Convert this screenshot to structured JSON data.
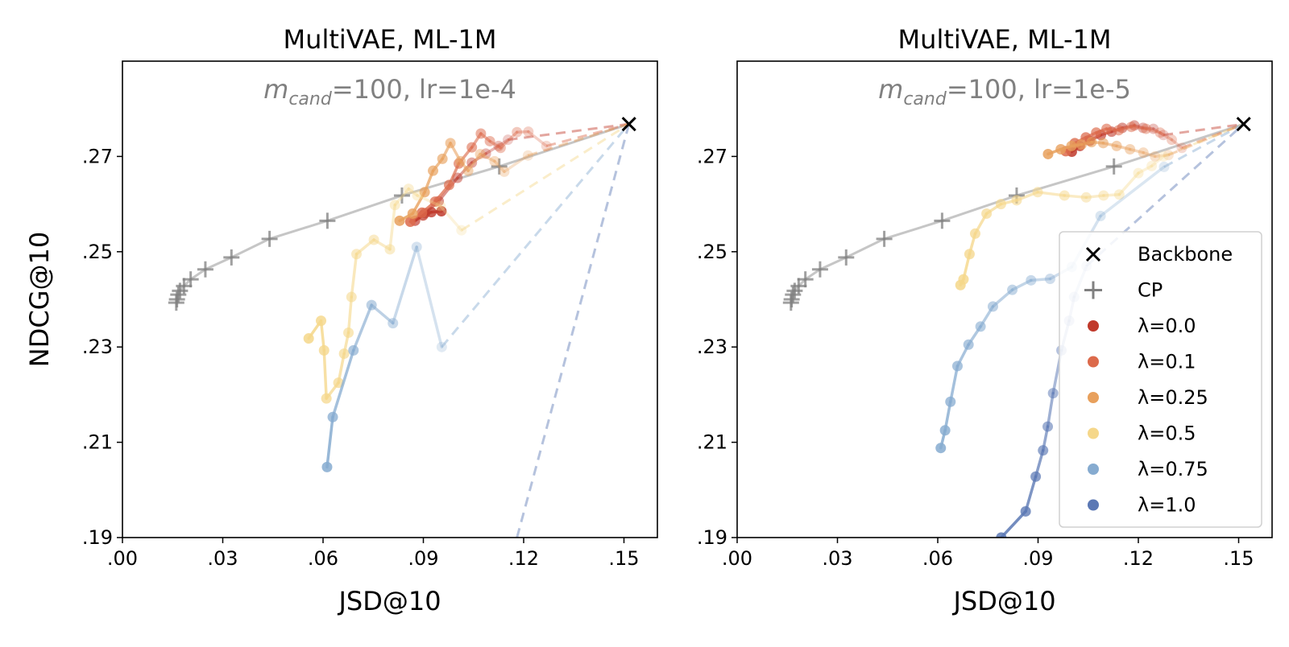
{
  "chart_data": [
    {
      "type": "line",
      "title": "MultiVAE, ML-1M",
      "annotation": {
        "sym": "m",
        "sub": "cand",
        "rest": "=100, lr=1e-4"
      },
      "xlabel": "JSD@10",
      "ylabel": "NDCG@10",
      "xlim": [
        0.0,
        0.16
      ],
      "ylim": [
        0.19,
        0.29
      ],
      "xticks": [
        0.0,
        0.03,
        0.06,
        0.09,
        0.12,
        0.15
      ],
      "xtick_labels": [
        ".00",
        ".03",
        ".06",
        ".09",
        ".12",
        ".15"
      ],
      "yticks": [
        0.19,
        0.21,
        0.23,
        0.25,
        0.27
      ],
      "ytick_labels": [
        ".19",
        ".21",
        ".23",
        ".25",
        ".27"
      ],
      "grid": false,
      "backbone": {
        "name": "Backbone",
        "x": 0.1515,
        "y": 0.2768,
        "color": "#000000"
      },
      "cp": {
        "name": "CP",
        "color": "#808080",
        "x": [
          0.0161,
          0.0163,
          0.0167,
          0.0172,
          0.0184,
          0.0204,
          0.0248,
          0.0326,
          0.044,
          0.0613,
          0.0836,
          0.1127,
          0.1515
        ],
        "y": [
          0.2393,
          0.24,
          0.241,
          0.2418,
          0.2428,
          0.2442,
          0.2463,
          0.2488,
          0.2527,
          0.2565,
          0.2618,
          0.2679,
          0.2768
        ]
      },
      "series": [
        {
          "name": "λ=0.0",
          "color": "#c0392b",
          "x": [
            0.0954,
            0.0924,
            0.0899,
            0.0875,
            0.0905,
            0.0946,
            0.1002,
            0.1045,
            0.1087,
            0.1125,
            0.1153
          ],
          "y": [
            0.2585,
            0.2583,
            0.2576,
            0.2565,
            0.2581,
            0.2606,
            0.2655,
            0.2687,
            0.2706,
            0.2722,
            0.2735
          ]
        },
        {
          "name": "λ=0.1",
          "color": "#dc6a4b",
          "x": [
            0.0861,
            0.0896,
            0.0935,
            0.0977,
            0.1006,
            0.1045,
            0.1072,
            0.1099,
            0.1131,
            0.118,
            0.1214,
            0.1268
          ],
          "y": [
            0.2563,
            0.2582,
            0.2605,
            0.264,
            0.2685,
            0.2719,
            0.2748,
            0.2732,
            0.2718,
            0.2751,
            0.2752,
            0.2722
          ]
        },
        {
          "name": "λ=0.25",
          "color": "#e8a05c",
          "x": [
            0.0829,
            0.0868,
            0.0904,
            0.0929,
            0.0957,
            0.0981,
            0.1011,
            0.1034,
            0.107,
            0.1113,
            0.1142,
            0.1213
          ],
          "y": [
            0.2565,
            0.258,
            0.2625,
            0.267,
            0.2695,
            0.2728,
            0.269,
            0.267,
            0.2705,
            0.269,
            0.2668,
            0.2702
          ]
        },
        {
          "name": "λ=0.5",
          "color": "#f5d78a",
          "x": [
            0.0557,
            0.0594,
            0.0603,
            0.061,
            0.0646,
            0.0663,
            0.0676,
            0.0685,
            0.07,
            0.0752,
            0.08,
            0.0815,
            0.0856,
            0.0882,
            0.0951,
            0.1014
          ],
          "y": [
            0.2318,
            0.2355,
            0.2293,
            0.2192,
            0.2225,
            0.2286,
            0.233,
            0.2405,
            0.2495,
            0.2525,
            0.2505,
            0.2598,
            0.2632,
            0.2618,
            0.2596,
            0.2545
          ]
        },
        {
          "name": "λ=0.75",
          "color": "#86abd0",
          "x": [
            0.0612,
            0.0629,
            0.0691,
            0.0745,
            0.0809,
            0.088,
            0.0955
          ],
          "y": [
            0.2048,
            0.2153,
            0.2293,
            0.2388,
            0.235,
            0.251,
            0.23
          ]
        },
        {
          "name": "λ=1.0",
          "color": "#5b78b4",
          "x": [],
          "y": []
        }
      ],
      "dashed_to_backbone": [
        {
          "series": "λ=0.0",
          "from": [
            0.1153,
            0.2735
          ]
        },
        {
          "series": "λ=0.1",
          "from": [
            0.1268,
            0.2722
          ]
        },
        {
          "series": "λ=0.25",
          "from": [
            0.1213,
            0.2702
          ]
        },
        {
          "series": "λ=0.5",
          "from": [
            0.1014,
            0.2545
          ]
        },
        {
          "series": "λ=0.75",
          "from": [
            0.0955,
            0.23
          ]
        },
        {
          "series": "λ=1.0",
          "from": [
            0.118,
            0.19
          ]
        }
      ],
      "legend": null
    },
    {
      "type": "line",
      "title": "MultiVAE, ML-1M",
      "annotation": {
        "sym": "m",
        "sub": "cand",
        "rest": "=100, lr=1e-5"
      },
      "xlabel": "JSD@10",
      "ylabel": "",
      "xlim": [
        0.0,
        0.16
      ],
      "ylim": [
        0.19,
        0.29
      ],
      "xticks": [
        0.0,
        0.03,
        0.06,
        0.09,
        0.12,
        0.15
      ],
      "xtick_labels": [
        ".00",
        ".03",
        ".06",
        ".09",
        ".12",
        ".15"
      ],
      "yticks": [
        0.19,
        0.21,
        0.23,
        0.25,
        0.27
      ],
      "ytick_labels": [
        ".19",
        ".21",
        ".23",
        ".25",
        ".27"
      ],
      "grid": false,
      "backbone": {
        "name": "Backbone",
        "x": 0.1515,
        "y": 0.2768,
        "color": "#000000"
      },
      "cp": {
        "name": "CP",
        "color": "#808080",
        "x": [
          0.0161,
          0.0163,
          0.0167,
          0.0172,
          0.0184,
          0.0204,
          0.0248,
          0.0326,
          0.044,
          0.0613,
          0.0836,
          0.1127,
          0.1515
        ],
        "y": [
          0.2393,
          0.24,
          0.241,
          0.2418,
          0.2428,
          0.2442,
          0.2463,
          0.2488,
          0.2527,
          0.2565,
          0.2618,
          0.2679,
          0.2768
        ]
      },
      "series": [
        {
          "name": "λ=0.0",
          "color": "#c0392b",
          "x": [
            0.1001,
            0.1025,
            0.1055,
            0.1088,
            0.112,
            0.1152,
            0.1188,
            0.1214,
            0.1245,
            0.1275
          ],
          "y": [
            0.271,
            0.2722,
            0.2733,
            0.2745,
            0.2752,
            0.276,
            0.2765,
            0.276,
            0.2758,
            0.2745
          ]
        },
        {
          "name": "λ=0.1",
          "color": "#dc6a4b",
          "x": [
            0.0983,
            0.101,
            0.1043,
            0.1074,
            0.1105,
            0.1141,
            0.1179,
            0.1223,
            0.1265,
            0.13,
            0.133
          ],
          "y": [
            0.2711,
            0.2728,
            0.274,
            0.275,
            0.2758,
            0.2755,
            0.2762,
            0.2758,
            0.275,
            0.2735,
            0.2718
          ]
        },
        {
          "name": "λ=0.25",
          "color": "#e8a05c",
          "x": [
            0.093,
            0.0968,
            0.1,
            0.103,
            0.106,
            0.1095,
            0.1135,
            0.1175,
            0.1215,
            0.125,
            0.129
          ],
          "y": [
            0.2705,
            0.2715,
            0.2722,
            0.2725,
            0.273,
            0.2728,
            0.2722,
            0.2715,
            0.2708,
            0.27,
            0.2703
          ]
        },
        {
          "name": "λ=0.5",
          "color": "#f5d78a",
          "x": [
            0.0668,
            0.0677,
            0.0695,
            0.0712,
            0.0746,
            0.0789,
            0.0836,
            0.0899,
            0.0979,
            0.1044,
            0.1096,
            0.1143,
            0.12,
            0.124,
            0.1275
          ],
          "y": [
            0.243,
            0.2442,
            0.2495,
            0.2538,
            0.258,
            0.26,
            0.2608,
            0.2625,
            0.2618,
            0.2614,
            0.2618,
            0.262,
            0.2665,
            0.268,
            0.27
          ]
        },
        {
          "name": "λ=0.75",
          "color": "#86abd0",
          "x": [
            0.0609,
            0.0622,
            0.0638,
            0.0659,
            0.0692,
            0.0728,
            0.0765,
            0.0823,
            0.0879,
            0.0936,
            0.1001,
            0.1087,
            0.1277
          ],
          "y": [
            0.2088,
            0.2125,
            0.2185,
            0.226,
            0.2305,
            0.2343,
            0.2385,
            0.242,
            0.244,
            0.2443,
            0.2468,
            0.2575,
            0.2678
          ]
        },
        {
          "name": "λ=1.0",
          "color": "#5b78b4",
          "x": [
            0.079,
            0.0863,
            0.0893,
            0.0915,
            0.0929,
            0.0945,
            0.097,
            0.0993,
            0.1008,
            0.1045
          ],
          "y": [
            0.19,
            0.1955,
            0.2028,
            0.2083,
            0.2133,
            0.2203,
            0.2293,
            0.2355,
            0.2405,
            0.247
          ]
        }
      ],
      "dashed_to_backbone": [
        {
          "series": "λ=0.0",
          "from": [
            0.1275,
            0.2745
          ]
        },
        {
          "series": "λ=0.1",
          "from": [
            0.133,
            0.2718
          ]
        },
        {
          "series": "λ=0.25",
          "from": [
            0.129,
            0.2703
          ]
        },
        {
          "series": "λ=0.5",
          "from": [
            0.1275,
            0.27
          ]
        },
        {
          "series": "λ=0.75",
          "from": [
            0.1277,
            0.2678
          ]
        },
        {
          "series": "λ=1.0",
          "from": [
            0.1045,
            0.247
          ]
        }
      ],
      "legend": {
        "position": "lower-right",
        "entries": [
          {
            "label": "Backbone",
            "marker": "x",
            "color": "#000000"
          },
          {
            "label": "CP",
            "marker": "+",
            "color": "#808080"
          },
          {
            "label": "λ=0.0",
            "marker": "o",
            "color": "#c0392b"
          },
          {
            "label": "λ=0.1",
            "marker": "o",
            "color": "#dc6a4b"
          },
          {
            "label": "λ=0.25",
            "marker": "o",
            "color": "#e8a05c"
          },
          {
            "label": "λ=0.5",
            "marker": "o",
            "color": "#f5d78a"
          },
          {
            "label": "λ=0.75",
            "marker": "o",
            "color": "#86abd0"
          },
          {
            "label": "λ=1.0",
            "marker": "o",
            "color": "#5b78b4"
          }
        ]
      }
    }
  ]
}
